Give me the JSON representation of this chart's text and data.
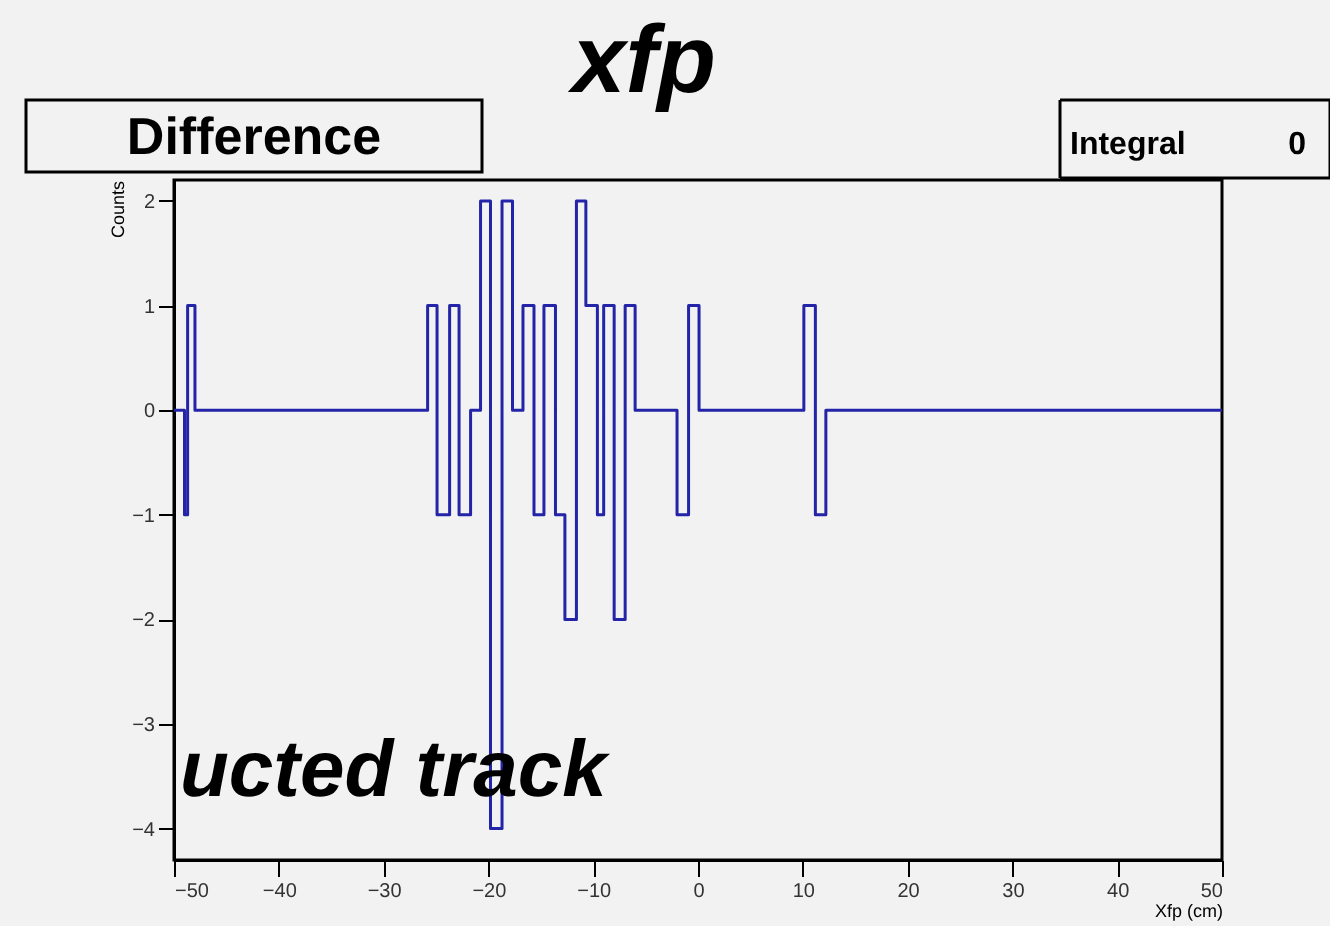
{
  "chart_data": {
    "type": "histogram",
    "title": "Difference",
    "xlabel": "Xfp (cm)",
    "ylabel": "Counts",
    "bins": [
      -50,
      -49,
      -48.7,
      -48,
      -25.8,
      -24.9,
      -23.7,
      -22.8,
      -21.7,
      -20.75,
      -19.8,
      -18.7,
      -17.7,
      -16.7,
      -15.65,
      -14.7,
      -13.6,
      -12.7,
      -11.6,
      -10.7,
      -9.6,
      -9,
      -8,
      -6.95,
      -6,
      -2,
      -0.9,
      0.1,
      10.1,
      11.2,
      12.2,
      50
    ],
    "values": [
      0,
      -1,
      1,
      0,
      1,
      -1,
      1,
      -1,
      0,
      2,
      -4,
      2,
      0,
      1,
      -1,
      1,
      -1,
      -2,
      2,
      1,
      -1,
      1,
      -2,
      1,
      0,
      -1,
      1,
      0,
      1,
      -1,
      0
    ],
    "color": "#2424a8",
    "xlim": [
      -50,
      50
    ],
    "ylim": [
      -4.3,
      2.2
    ],
    "xticks": [
      -50,
      -40,
      -30,
      -20,
      -10,
      0,
      10,
      20,
      30,
      40,
      50
    ],
    "yticks": [
      -4,
      -3,
      -2,
      -1,
      0,
      1,
      2
    ],
    "grid": false,
    "annotations": [
      "xfp",
      "Integral 0",
      "ucted track"
    ]
  }
}
